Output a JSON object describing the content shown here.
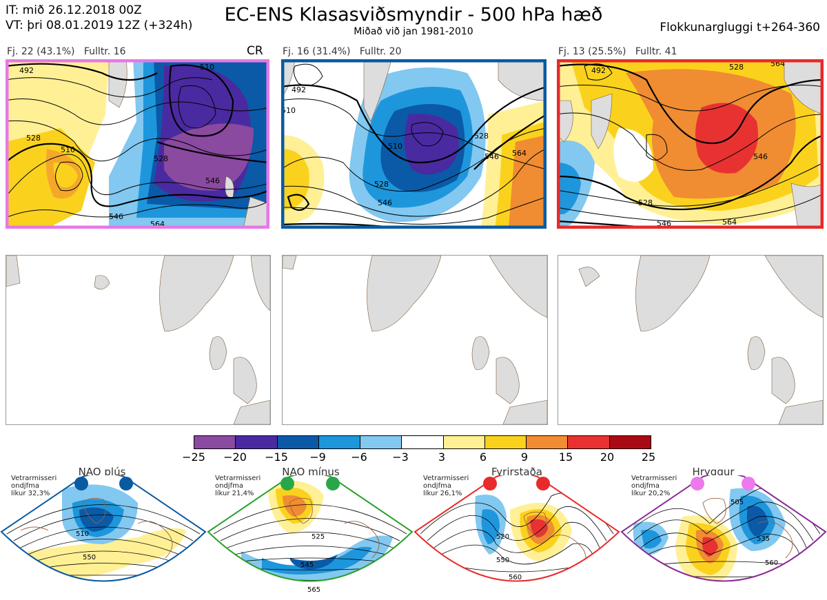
{
  "header": {
    "it_line": "IT: mið 26.12.2018 00Z",
    "vt_line": "VT: þri 08.01.2019 12Z  (+324h)",
    "title": "EC-ENS Klasasviðsmyndir - 500 hPa hæð",
    "subtitle": "Miðað við jan 1981-2010",
    "window": "Flokkunargluggi t+264-360"
  },
  "clusters": [
    {
      "label": "Fj. 22 (43.1%)",
      "fulltr": "Fulltr. 16",
      "tag": "CR",
      "border": "#e678e6",
      "contours": [
        "492",
        "510",
        "528",
        "546",
        "564",
        "528",
        "510",
        "546"
      ]
    },
    {
      "label": "Fj. 16 (31.4%)",
      "fulltr": "Fulltr. 20",
      "tag": "",
      "border": "#0a5aa0",
      "contours": [
        "492",
        "510",
        "528",
        "546",
        "564",
        "510",
        "528",
        "546"
      ]
    },
    {
      "label": "Fj. 13 (25.5%)",
      "fulltr": "Fulltr. 41",
      "tag": "",
      "border": "#e82a2a",
      "contours": [
        "492",
        "528",
        "546",
        "564",
        "528",
        "546",
        "564"
      ]
    }
  ],
  "colorbar": {
    "ticks": [
      "−25",
      "−20",
      "−15",
      "−9",
      "−6",
      "−3",
      "3",
      "6",
      "9",
      "15",
      "20",
      "25"
    ],
    "colors": [
      "#8a4aa0",
      "#4a2aa0",
      "#0a5aa8",
      "#1e96dc",
      "#82c8f0",
      "#ffffff",
      "#fff096",
      "#fad21e",
      "#f08c32",
      "#e83232",
      "#aa0a14"
    ]
  },
  "regimes": [
    {
      "name": "NAO plús",
      "note1": "Vetrarmisseri",
      "note2": "ondjfma",
      "note3": "líkur 32,3%",
      "color": "#0a5aa0",
      "dot": "#0a5aa0",
      "labels": [
        "510",
        "550"
      ]
    },
    {
      "name": "NAO mínus",
      "note1": "Vetrarmisseri",
      "note2": "ondjfma",
      "note3": "líkur 21,4%",
      "color": "#2aa02a",
      "dot": "#2aa64a",
      "labels": [
        "525",
        "545",
        "565"
      ]
    },
    {
      "name": "Fyrirstaða",
      "note1": "Vetrarmisseri",
      "note2": "ondjfma",
      "note3": "líkur 26,1%",
      "color": "#e82a2a",
      "dot": "#e82a2a",
      "labels": [
        "520",
        "550",
        "560"
      ]
    },
    {
      "name": "Hryggur",
      "note1": "Vetrarmisseri",
      "note2": "ondjfma",
      "note3": "líkur 20,2%",
      "color": "#8a2a96",
      "dot": "#ee78ee",
      "labels": [
        "505",
        "535",
        "560"
      ]
    }
  ]
}
